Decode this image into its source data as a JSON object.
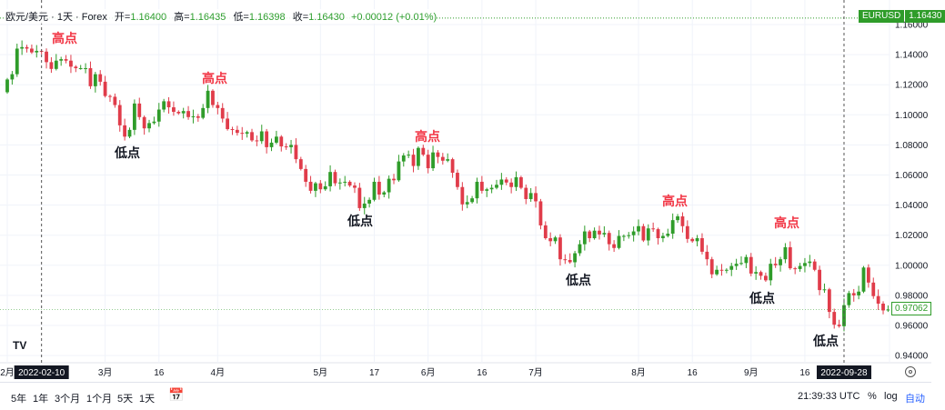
{
  "header": {
    "symbol_title": "欧元/美元 · 1天 · Forex",
    "open_label": "开=",
    "open": "1.16400",
    "high_label": "高=",
    "high": "1.16435",
    "low_label": "低=",
    "low": "1.16398",
    "close_label": "收=",
    "close": "1.16430",
    "change": "+0.00012 (+0.01%)"
  },
  "symbol_tag": {
    "ticker": "EURUSD",
    "price": "1.16430"
  },
  "last_price_tag": "0.97062",
  "colors": {
    "up": "#2f9c2a",
    "down": "#e03c4a",
    "high_label": "#f23645",
    "low_label": "#131722"
  },
  "annotations": {
    "high": "高点",
    "low": "低点"
  },
  "chart_data": {
    "type": "candlestick",
    "title": "欧元/美元 · 1天 · Forex",
    "ylim": [
      0.93,
      1.165
    ],
    "y_ticks": [
      "1.16000",
      "1.14000",
      "1.12000",
      "1.10000",
      "1.08000",
      "1.06000",
      "1.04000",
      "1.02000",
      "1.00000",
      "0.98000",
      "0.96000",
      "0.94000"
    ],
    "x_ticks": [
      {
        "label": "2月",
        "index": 0
      },
      {
        "label": "3月",
        "index": 20
      },
      {
        "label": "16",
        "index": 31
      },
      {
        "label": "4月",
        "index": 43
      },
      {
        "label": "5月",
        "index": 64
      },
      {
        "label": "17",
        "index": 75
      },
      {
        "label": "6月",
        "index": 86
      },
      {
        "label": "16",
        "index": 97
      },
      {
        "label": "7月",
        "index": 108
      },
      {
        "label": "8月",
        "index": 129
      },
      {
        "label": "16",
        "index": 140
      },
      {
        "label": "9月",
        "index": 152
      },
      {
        "label": "16",
        "index": 163
      }
    ],
    "markers": [
      {
        "label": "2022-02-10",
        "index": 7
      },
      {
        "label": "2022-09-28",
        "index": 171
      }
    ],
    "first_open": 1.115,
    "closes": [
      1.1235,
      1.127,
      1.144,
      1.145,
      1.144,
      1.1415,
      1.1425,
      1.142,
      1.135,
      1.1305,
      1.136,
      1.137,
      1.136,
      1.132,
      1.131,
      1.131,
      1.131,
      1.119,
      1.127,
      1.122,
      1.1125,
      1.112,
      1.1065,
      1.093,
      1.0855,
      1.09,
      1.1075,
      1.0985,
      1.091,
      1.0945,
      1.0955,
      1.1035,
      1.109,
      1.105,
      1.102,
      1.101,
      1.1025,
      1.0985,
      1.099,
      1.098,
      1.1045,
      1.116,
      1.1065,
      1.1045,
      1.0975,
      1.0905,
      1.09,
      1.088,
      1.0875,
      1.0885,
      1.083,
      1.0825,
      1.089,
      1.0785,
      1.0815,
      1.0855,
      1.079,
      1.0785,
      1.08,
      1.0705,
      1.064,
      1.0555,
      1.0495,
      1.0545,
      1.0505,
      1.0525,
      1.062,
      1.0545,
      1.055,
      1.0555,
      1.053,
      1.0515,
      1.038,
      1.041,
      1.0435,
      1.0555,
      1.047,
      1.0485,
      1.0575,
      1.0565,
      1.069,
      1.073,
      1.0735,
      1.066,
      1.078,
      1.0735,
      1.0645,
      1.075,
      1.072,
      1.0695,
      1.0705,
      1.0615,
      1.052,
      1.0405,
      1.042,
      1.0445,
      1.0555,
      1.0495,
      1.0505,
      1.0515,
      1.0535,
      1.057,
      1.055,
      1.052,
      1.0585,
      1.0515,
      1.044,
      1.048,
      1.0425,
      1.0265,
      1.018,
      1.016,
      1.0185,
      1.004,
      1.0035,
      1.002,
      1.008,
      1.014,
      1.0225,
      1.018,
      1.023,
      1.0205,
      1.0215,
      1.014,
      1.0115,
      1.0195,
      1.0195,
      1.02,
      1.0225,
      1.026,
      1.0165,
      1.0245,
      1.024,
      1.018,
      1.0195,
      1.021,
      1.03,
      1.0325,
      1.026,
      1.0175,
      1.016,
      1.018,
      1.009,
      1.004,
      0.994,
      0.997,
      0.9965,
      0.997,
      0.9995,
      1.001,
      1.0015,
      1.0055,
      0.9945,
      0.9955,
      0.993,
      0.99,
      1.001,
      1.0,
      1.004,
      1.012,
      0.998,
      0.9975,
      0.9995,
      1.0015,
      1.0025,
      0.997,
      0.9835,
      0.984,
      0.969,
      0.9605,
      0.9595,
      0.9735,
      0.9815,
      0.98,
      0.9825,
      0.9985,
      0.9885,
      0.9795,
      0.9745,
      0.97,
      0.9706
    ]
  },
  "bottom_bar": {
    "ranges": [
      "5年",
      "1年",
      "3个月",
      "1个月",
      "5天",
      "1天"
    ],
    "time": "21:39:33 UTC",
    "percent": "%",
    "log": "log",
    "auto": "自动"
  }
}
